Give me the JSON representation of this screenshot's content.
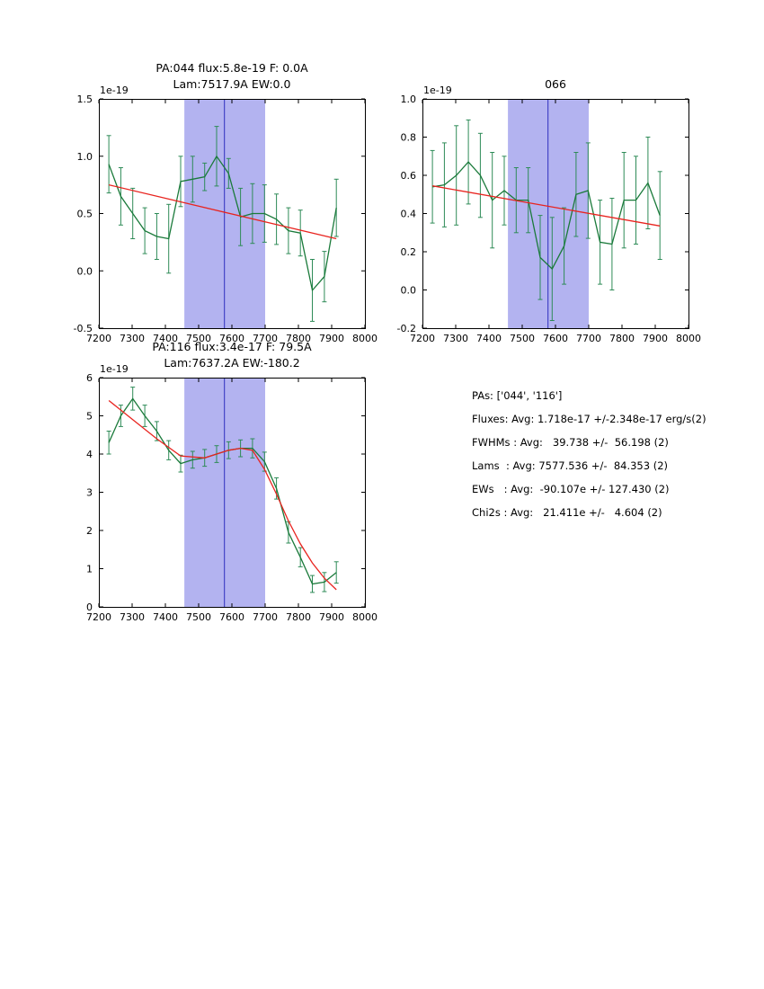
{
  "page": {
    "background": "#ffffff"
  },
  "theme": {
    "data_color": "#1a7a3a",
    "err_color": "#2e8b57",
    "fit_color": "#e8241f",
    "band_color": "#b3b3f0",
    "vline_color": "#2e2ebe",
    "axis_color": "#000000"
  },
  "chart_data": [
    {
      "type": "line",
      "name": "pa044-spectrum",
      "title_lines": [
        "PA:044 flux:5.8e-19 F: 0.0A",
        "Lam:7517.9A EW:0.0"
      ],
      "offset_label": "1e-19",
      "xlim": [
        7200,
        8000
      ],
      "ylim": [
        -0.5,
        1.5
      ],
      "xticks": [
        7200,
        7300,
        7400,
        7500,
        7600,
        7700,
        7800,
        7900,
        8000
      ],
      "yticks": [
        {
          "v": -0.5,
          "t": "-0.5"
        },
        {
          "v": 0.0,
          "t": "0.0"
        },
        {
          "v": 0.5,
          "t": "0.5"
        },
        {
          "v": 1.0,
          "t": "1.0"
        },
        {
          "v": 1.5,
          "t": "1.5"
        }
      ],
      "band": [
        7457,
        7700
      ],
      "vline": 7577.5,
      "x": [
        7230,
        7266,
        7302,
        7338,
        7374,
        7410,
        7446,
        7482,
        7518,
        7554,
        7590,
        7626,
        7662,
        7698,
        7734,
        7770,
        7806,
        7842,
        7878,
        7914
      ],
      "y": [
        0.93,
        0.65,
        0.5,
        0.35,
        0.3,
        0.28,
        0.78,
        0.8,
        0.82,
        1.0,
        0.85,
        0.47,
        0.5,
        0.5,
        0.45,
        0.35,
        0.33,
        -0.17,
        -0.05,
        0.55
      ],
      "yerr": [
        0.25,
        0.25,
        0.22,
        0.2,
        0.2,
        0.3,
        0.22,
        0.2,
        0.12,
        0.26,
        0.13,
        0.25,
        0.26,
        0.25,
        0.22,
        0.2,
        0.2,
        0.27,
        0.22,
        0.25
      ],
      "fit": {
        "x": [
          7230,
          7914
        ],
        "y": [
          0.75,
          0.28
        ]
      }
    },
    {
      "type": "line",
      "name": "pa066-spectrum",
      "title_lines": [
        "066"
      ],
      "offset_label": "1e-19",
      "xlim": [
        7200,
        8000
      ],
      "ylim": [
        -0.2,
        1.0
      ],
      "xticks": [
        7200,
        7300,
        7400,
        7500,
        7600,
        7700,
        7800,
        7900,
        8000
      ],
      "yticks": [
        {
          "v": -0.2,
          "t": "-0.2"
        },
        {
          "v": 0.0,
          "t": "0.0"
        },
        {
          "v": 0.2,
          "t": "0.2"
        },
        {
          "v": 0.4,
          "t": "0.4"
        },
        {
          "v": 0.6,
          "t": "0.6"
        },
        {
          "v": 0.8,
          "t": "0.8"
        },
        {
          "v": 1.0,
          "t": "1.0"
        }
      ],
      "band": [
        7457,
        7700
      ],
      "vline": 7577.5,
      "x": [
        7230,
        7266,
        7302,
        7338,
        7374,
        7410,
        7446,
        7482,
        7518,
        7554,
        7590,
        7626,
        7662,
        7698,
        7734,
        7770,
        7806,
        7842,
        7878,
        7914
      ],
      "y": [
        0.54,
        0.55,
        0.6,
        0.67,
        0.6,
        0.47,
        0.52,
        0.47,
        0.47,
        0.17,
        0.11,
        0.23,
        0.5,
        0.52,
        0.25,
        0.24,
        0.47,
        0.47,
        0.56,
        0.39
      ],
      "yerr": [
        0.19,
        0.22,
        0.26,
        0.22,
        0.22,
        0.25,
        0.18,
        0.17,
        0.17,
        0.22,
        0.27,
        0.2,
        0.22,
        0.25,
        0.22,
        0.24,
        0.25,
        0.23,
        0.24,
        0.23
      ],
      "fit": {
        "x": [
          7230,
          7914
        ],
        "y": [
          0.545,
          0.335
        ]
      }
    },
    {
      "type": "line",
      "name": "pa116-spectrum",
      "title_lines": [
        "PA:116 flux:3.4e-17 F: 79.5A",
        "Lam:7637.2A EW:-180.2"
      ],
      "offset_label": "1e-19",
      "xlim": [
        7200,
        8000
      ],
      "ylim": [
        0,
        6
      ],
      "xticks": [
        7200,
        7300,
        7400,
        7500,
        7600,
        7700,
        7800,
        7900,
        8000
      ],
      "yticks": [
        {
          "v": 0,
          "t": "0"
        },
        {
          "v": 1,
          "t": "1"
        },
        {
          "v": 2,
          "t": "2"
        },
        {
          "v": 3,
          "t": "3"
        },
        {
          "v": 4,
          "t": "4"
        },
        {
          "v": 5,
          "t": "5"
        },
        {
          "v": 6,
          "t": "6"
        }
      ],
      "band": [
        7457,
        7700
      ],
      "vline": 7577.5,
      "x": [
        7230,
        7266,
        7302,
        7338,
        7374,
        7410,
        7446,
        7482,
        7518,
        7554,
        7590,
        7626,
        7662,
        7698,
        7734,
        7770,
        7806,
        7842,
        7878,
        7914
      ],
      "y": [
        4.3,
        5.0,
        5.45,
        5.0,
        4.6,
        4.1,
        3.75,
        3.85,
        3.9,
        4.0,
        4.1,
        4.15,
        4.15,
        3.8,
        3.1,
        1.95,
        1.3,
        0.6,
        0.65,
        0.9
      ],
      "yerr": [
        0.3,
        0.28,
        0.3,
        0.28,
        0.25,
        0.25,
        0.22,
        0.22,
        0.22,
        0.22,
        0.22,
        0.22,
        0.25,
        0.25,
        0.28,
        0.28,
        0.25,
        0.22,
        0.25,
        0.28
      ],
      "fit": {
        "x": [
          7230,
          7302,
          7374,
          7446,
          7518,
          7554,
          7590,
          7626,
          7662,
          7698,
          7734,
          7770,
          7806,
          7842,
          7878,
          7914
        ],
        "y": [
          5.4,
          4.9,
          4.4,
          3.95,
          3.9,
          4.0,
          4.1,
          4.15,
          4.1,
          3.6,
          2.95,
          2.25,
          1.65,
          1.15,
          0.75,
          0.45
        ]
      }
    }
  ],
  "stats_panel": {
    "lines": [
      "PAs: ['044', '116']",
      "Fluxes: Avg: 1.718e-17 +/-2.348e-17 erg/s(2)",
      "FWHMs : Avg:   39.738 +/-  56.198 (2)",
      "Lams  : Avg: 7577.536 +/-  84.353 (2)",
      "EWs   : Avg:  -90.107e +/- 127.430 (2)",
      "Chi2s : Avg:   21.411e +/-   4.604 (2)"
    ]
  }
}
